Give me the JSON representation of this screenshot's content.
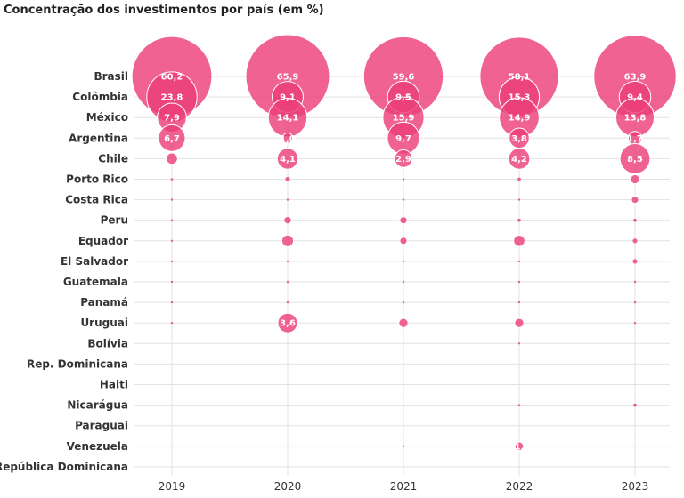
{
  "chart_data": {
    "type": "scatter",
    "title": "Concentração dos investimentos por país (em %)",
    "encoding": "bubble area proportional to share",
    "x": [
      "2019",
      "2020",
      "2021",
      "2022",
      "2023"
    ],
    "categories": [
      "Brasil",
      "Colômbia",
      "México",
      "Argentina",
      "Chile",
      "Porto Rico",
      "Costa Rica",
      "Peru",
      "Equador",
      "El Salvador",
      "Guatemala",
      "Panamá",
      "Uruguai",
      "Bolívia",
      "Rep. Dominicana",
      "Haiti",
      "Nicarágua",
      "Paraguai",
      "Venezuela",
      "República Dominicana"
    ],
    "series": [
      {
        "values": [
          60.2,
          23.8,
          7.9,
          6.7,
          1.2,
          0.05,
          0.03,
          0.03,
          0.03,
          0.01,
          0.01,
          0.01,
          0.01,
          0,
          0,
          0,
          0,
          0,
          0,
          0
        ],
        "labels": [
          "60,2",
          "23,8",
          "7,9",
          "6,7",
          "",
          "",
          "",
          "",
          "",
          "",
          "",
          "",
          "",
          "",
          "",
          "",
          "",
          "",
          "",
          ""
        ]
      },
      {
        "values": [
          65.9,
          9.1,
          14.1,
          1.0,
          4.1,
          0.2,
          0.02,
          0.4,
          1.3,
          0.02,
          0.03,
          0.03,
          3.6,
          0,
          0,
          0,
          0,
          0,
          0,
          0
        ],
        "labels": [
          "65,9",
          "9,1",
          "14,1",
          "1,0",
          "4,1",
          "",
          "",
          "",
          "",
          "",
          "",
          "",
          "3,6",
          "",
          "",
          "",
          "",
          "",
          "",
          ""
        ]
      },
      {
        "values": [
          59.6,
          9.5,
          15.9,
          9.7,
          2.9,
          0.04,
          0.02,
          0.5,
          0.5,
          0.02,
          0.01,
          0.01,
          0.8,
          0,
          0,
          0,
          0,
          0,
          0.03,
          0
        ],
        "labels": [
          "59,6",
          "9,5",
          "15,9",
          "9,7",
          "2,9",
          "",
          "",
          "",
          "",
          "",
          "",
          "",
          "",
          "",
          "",
          "",
          "",
          "",
          "",
          ""
        ]
      },
      {
        "values": [
          58.1,
          15.3,
          14.9,
          3.8,
          4.2,
          0.1,
          0.02,
          0.1,
          1.2,
          0.02,
          0.02,
          0.02,
          0.8,
          0.01,
          0,
          0,
          0.02,
          0,
          0.7,
          0
        ],
        "labels": [
          "58,1",
          "15,3",
          "14,9",
          "3,8",
          "4,2",
          "",
          "",
          "",
          "",
          "",
          "",
          "",
          "",
          "",
          "",
          "",
          "",
          "",
          "1,",
          ""
        ]
      },
      {
        "values": [
          63.9,
          9.4,
          13.8,
          1.7,
          8.5,
          0.8,
          0.5,
          0.1,
          0.2,
          0.2,
          0.01,
          0.01,
          0.01,
          0,
          0,
          0,
          0.1,
          0,
          0,
          0
        ],
        "labels": [
          "63,9",
          "9,4",
          "13,8",
          "1,7",
          "8,5",
          "",
          "",
          "",
          "",
          "",
          "",
          "",
          "",
          "",
          "",
          "",
          "",
          "",
          "",
          ""
        ]
      }
    ],
    "grid": true,
    "colors": {
      "bubble": "#ec407a",
      "bubble_dark": "#e91e63",
      "grid": "#e2e2e2",
      "text": "#333333"
    }
  }
}
